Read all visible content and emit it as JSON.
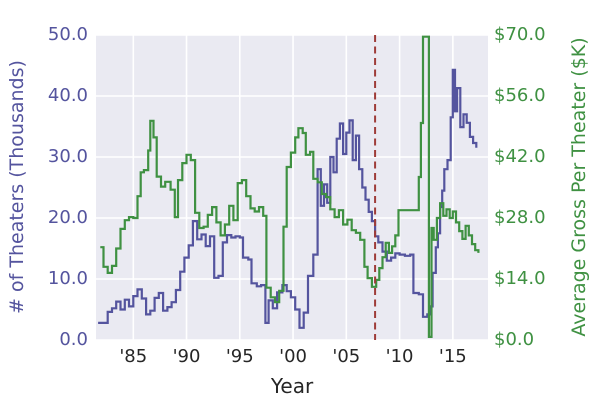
{
  "figure": {
    "x_title": "Year",
    "left_axis": {
      "title": "# of Theaters (Thousands)",
      "color": "#54549e",
      "range": [
        0,
        50
      ],
      "ticks": [
        {
          "label": "0.0",
          "v": 0
        },
        {
          "label": "10.0",
          "v": 10
        },
        {
          "label": "20.0",
          "v": 20
        },
        {
          "label": "30.0",
          "v": 30
        },
        {
          "label": "40.0",
          "v": 40
        },
        {
          "label": "50.0",
          "v": 50
        }
      ]
    },
    "right_axis": {
      "title": "Average Gross Per Theater ($K)",
      "color": "#3f9142",
      "range": [
        0,
        70
      ],
      "ticks": [
        {
          "label": "$0.0",
          "v": 0
        },
        {
          "label": "$14.0",
          "v": 14
        },
        {
          "label": "$28.0",
          "v": 28
        },
        {
          "label": "$42.0",
          "v": 42
        },
        {
          "label": "$56.0",
          "v": 56
        },
        {
          "label": "$70.0",
          "v": 70
        }
      ]
    },
    "x_axis": {
      "ticks": [
        {
          "label": "'85",
          "year": 1985
        },
        {
          "label": "'90",
          "year": 1990
        },
        {
          "label": "'95",
          "year": 1995
        },
        {
          "label": "'00",
          "year": 2000
        },
        {
          "label": "'05",
          "year": 2005
        },
        {
          "label": "'10",
          "year": 2010
        },
        {
          "label": "'15",
          "year": 2015
        }
      ]
    }
  },
  "chart_data": {
    "type": "line",
    "step": true,
    "grid": "on",
    "grid_color": "#ffffff",
    "plot_bg": "#eaeaf2",
    "x_range": [
      1981.5,
      2018.3
    ],
    "xlabel": "Year",
    "annotations": [
      {
        "type": "vline",
        "x": 2007.7,
        "color": "#9e3c38",
        "style": "dashed"
      }
    ],
    "series": [
      {
        "name": "# of Theaters (Thousands)",
        "axis": "left",
        "color": "#54549e",
        "ylim": [
          0,
          50
        ],
        "data": [
          [
            1981.7,
            2.8
          ],
          [
            1982.6,
            4.6
          ],
          [
            1983.0,
            5.2
          ],
          [
            1983.4,
            6.3
          ],
          [
            1983.8,
            5.0
          ],
          [
            1984.2,
            6.6
          ],
          [
            1984.6,
            5.5
          ],
          [
            1985.0,
            7.2
          ],
          [
            1985.4,
            8.3
          ],
          [
            1985.8,
            6.8
          ],
          [
            1986.2,
            4.2
          ],
          [
            1986.6,
            4.8
          ],
          [
            1987.0,
            6.9
          ],
          [
            1987.4,
            7.7
          ],
          [
            1987.8,
            4.8
          ],
          [
            1988.2,
            5.4
          ],
          [
            1988.6,
            6.2
          ],
          [
            1989.0,
            8.2
          ],
          [
            1989.4,
            11.2
          ],
          [
            1989.8,
            13.5
          ],
          [
            1990.2,
            15.5
          ],
          [
            1990.6,
            19.5
          ],
          [
            1991.0,
            16.5
          ],
          [
            1991.4,
            17.3
          ],
          [
            1991.8,
            15.4
          ],
          [
            1992.2,
            17.0
          ],
          [
            1992.6,
            10.2
          ],
          [
            1993.0,
            10.5
          ],
          [
            1993.4,
            16.0
          ],
          [
            1993.8,
            17.2
          ],
          [
            1994.2,
            16.8
          ],
          [
            1994.6,
            17.0
          ],
          [
            1995.0,
            16.8
          ],
          [
            1995.3,
            13.5
          ],
          [
            1995.8,
            13.2
          ],
          [
            1996.1,
            9.3
          ],
          [
            1996.6,
            8.8
          ],
          [
            1997.0,
            9.0
          ],
          [
            1997.4,
            2.8
          ],
          [
            1997.7,
            6.5
          ],
          [
            1998.1,
            5.2
          ],
          [
            1998.5,
            7.8
          ],
          [
            1999.0,
            9.0
          ],
          [
            1999.4,
            8.0
          ],
          [
            1999.8,
            7.0
          ],
          [
            2000.2,
            5.0
          ],
          [
            2000.6,
            2.0
          ],
          [
            2001.0,
            4.5
          ],
          [
            2001.4,
            10.5
          ],
          [
            2001.9,
            14.0
          ],
          [
            2002.3,
            28.0
          ],
          [
            2002.6,
            22.0
          ],
          [
            2002.9,
            25.5
          ],
          [
            2003.2,
            22.5
          ],
          [
            2003.5,
            30.0
          ],
          [
            2003.8,
            27.5
          ],
          [
            2004.1,
            33.0
          ],
          [
            2004.4,
            35.5
          ],
          [
            2004.7,
            30.5
          ],
          [
            2005.0,
            34.0
          ],
          [
            2005.3,
            36.0
          ],
          [
            2005.6,
            29.5
          ],
          [
            2005.9,
            33.5
          ],
          [
            2006.2,
            28.0
          ],
          [
            2006.5,
            25.0
          ],
          [
            2006.8,
            23.0
          ],
          [
            2007.1,
            21.0
          ],
          [
            2007.4,
            19.5
          ],
          [
            2007.7,
            17.0
          ],
          [
            2008.0,
            16.0
          ],
          [
            2008.4,
            14.5
          ],
          [
            2008.8,
            13.0
          ],
          [
            2009.2,
            13.5
          ],
          [
            2009.6,
            14.2
          ],
          [
            2010.0,
            14.0
          ],
          [
            2010.5,
            13.8
          ],
          [
            2011.0,
            14.0
          ],
          [
            2011.3,
            7.7
          ],
          [
            2011.8,
            7.5
          ],
          [
            2012.2,
            3.8
          ],
          [
            2012.6,
            4.2
          ],
          [
            2012.9,
            5.5
          ],
          [
            2013.1,
            11.0
          ],
          [
            2013.4,
            15.2
          ],
          [
            2013.6,
            17.5
          ],
          [
            2013.8,
            21.8
          ],
          [
            2014.0,
            24.5
          ],
          [
            2014.2,
            28.0
          ],
          [
            2014.5,
            29.5
          ],
          [
            2014.8,
            36.5
          ],
          [
            2015.0,
            44.3
          ],
          [
            2015.2,
            37.5
          ],
          [
            2015.4,
            41.3
          ],
          [
            2015.7,
            34.9
          ],
          [
            2016.0,
            37.0
          ],
          [
            2016.3,
            35.6
          ],
          [
            2016.6,
            33.3
          ],
          [
            2016.9,
            32.3
          ],
          [
            2017.2,
            31.5
          ]
        ]
      },
      {
        "name": "Average Gross Per Theater ($K)",
        "axis": "right",
        "color": "#3f9142",
        "ylim": [
          0,
          70
        ],
        "data": [
          [
            1981.9,
            21.3
          ],
          [
            1982.2,
            16.8
          ],
          [
            1982.6,
            15.4
          ],
          [
            1983.0,
            17.0
          ],
          [
            1983.4,
            21.0
          ],
          [
            1983.8,
            25.5
          ],
          [
            1984.2,
            27.5
          ],
          [
            1984.6,
            28.2
          ],
          [
            1985.0,
            28.0
          ],
          [
            1985.4,
            33.0
          ],
          [
            1985.7,
            38.5
          ],
          [
            1986.0,
            39.0
          ],
          [
            1986.4,
            43.5
          ],
          [
            1986.6,
            50.3
          ],
          [
            1986.9,
            46.5
          ],
          [
            1987.2,
            37.5
          ],
          [
            1987.6,
            35.2
          ],
          [
            1988.0,
            36.3
          ],
          [
            1988.5,
            34.5
          ],
          [
            1988.9,
            28.2
          ],
          [
            1989.2,
            36.7
          ],
          [
            1989.6,
            40.6
          ],
          [
            1990.0,
            42.5
          ],
          [
            1990.4,
            41.3
          ],
          [
            1990.8,
            29.2
          ],
          [
            1991.2,
            25.7
          ],
          [
            1991.6,
            26.0
          ],
          [
            1992.0,
            28.7
          ],
          [
            1992.4,
            30.5
          ],
          [
            1992.8,
            27.0
          ],
          [
            1993.2,
            24.0
          ],
          [
            1993.6,
            26.5
          ],
          [
            1994.0,
            30.8
          ],
          [
            1994.4,
            27.5
          ],
          [
            1994.8,
            36.0
          ],
          [
            1995.2,
            36.7
          ],
          [
            1995.6,
            33.0
          ],
          [
            1996.0,
            30.2
          ],
          [
            1996.4,
            29.5
          ],
          [
            1996.8,
            30.5
          ],
          [
            1997.2,
            28.5
          ],
          [
            1997.5,
            12.0
          ],
          [
            1997.9,
            9.8
          ],
          [
            1998.3,
            8.7
          ],
          [
            1998.7,
            11.3
          ],
          [
            1999.1,
            26.0
          ],
          [
            1999.4,
            39.7
          ],
          [
            1999.8,
            43.0
          ],
          [
            2000.2,
            46.5
          ],
          [
            2000.5,
            48.6
          ],
          [
            2000.9,
            47.5
          ],
          [
            2001.2,
            42.5
          ],
          [
            2001.6,
            43.2
          ],
          [
            2001.9,
            37.0
          ],
          [
            2002.3,
            36.2
          ],
          [
            2002.7,
            33.5
          ],
          [
            2003.1,
            32.8
          ],
          [
            2003.5,
            30.0
          ],
          [
            2003.9,
            28.2
          ],
          [
            2004.3,
            29.8
          ],
          [
            2004.7,
            26.5
          ],
          [
            2005.1,
            27.6
          ],
          [
            2005.5,
            25.2
          ],
          [
            2005.9,
            24.6
          ],
          [
            2006.3,
            23.0
          ],
          [
            2006.7,
            16.8
          ],
          [
            2007.0,
            14.2
          ],
          [
            2007.4,
            12.2
          ],
          [
            2007.8,
            13.8
          ],
          [
            2008.1,
            16.5
          ],
          [
            2008.4,
            19.0
          ],
          [
            2008.7,
            22.3
          ],
          [
            2009.0,
            20.0
          ],
          [
            2009.3,
            21.5
          ],
          [
            2009.6,
            24.0
          ],
          [
            2009.9,
            29.8
          ],
          [
            2010.4,
            29.8
          ],
          [
            2011.0,
            29.8
          ],
          [
            2011.5,
            29.8
          ],
          [
            2011.8,
            37.4
          ],
          [
            2012.0,
            49.8
          ],
          [
            2012.2,
            69.6
          ],
          [
            2012.6,
            69.6
          ],
          [
            2012.75,
            0.7
          ],
          [
            2013.0,
            25.7
          ],
          [
            2013.2,
            23.0
          ],
          [
            2013.5,
            28.0
          ],
          [
            2013.8,
            31.4
          ],
          [
            2014.1,
            28.5
          ],
          [
            2014.4,
            30.0
          ],
          [
            2014.7,
            28.0
          ],
          [
            2015.0,
            29.5
          ],
          [
            2015.3,
            27.0
          ],
          [
            2015.6,
            25.0
          ],
          [
            2015.9,
            23.2
          ],
          [
            2016.2,
            26.2
          ],
          [
            2016.5,
            24.0
          ],
          [
            2016.8,
            22.0
          ],
          [
            2017.1,
            20.6
          ],
          [
            2017.4,
            20.0
          ]
        ]
      }
    ]
  }
}
